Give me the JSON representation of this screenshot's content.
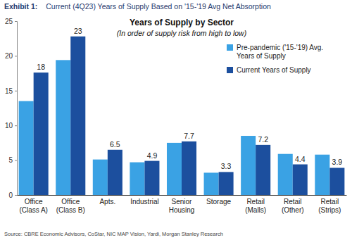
{
  "chart_data": {
    "type": "bar",
    "header": {
      "label": "Exhibit 1:",
      "title": "Current (4Q23) Years of Supply Based on '15-'19 Avg Net Absorption"
    },
    "title": "Years of Supply by Sector",
    "subtitle": "(In order of supply risk from high to low)",
    "source": "Source: CBRE Economic Advisors, CoStar, NIC MAP Vision, Yardi, Morgan Stanley Research",
    "categories": [
      "Office (Class A)",
      "Office (Class B)",
      "Apts.",
      "Industrial",
      "Senior Housing",
      "Storage",
      "Retail (Malls)",
      "Retail (Other)",
      "Retail (Strips)"
    ],
    "series": [
      {
        "name": "Pre-pandemic ('15-'19) Avg. Years of Supply",
        "color": "#3aa2e4",
        "values": [
          13.5,
          19.4,
          5.1,
          4.7,
          7.5,
          3.2,
          8.5,
          5.9,
          5.8
        ]
      },
      {
        "name": "Current Years of Supply",
        "color": "#1c4f9e",
        "values": [
          17.6,
          22.8,
          6.5,
          4.9,
          7.7,
          3.3,
          7.2,
          4.4,
          3.9
        ],
        "value_labels": [
          "18",
          "23",
          "6.5",
          "4.9",
          "7.7",
          "3.3",
          "7.2",
          "4.4",
          "3.9"
        ],
        "data_labels": true
      }
    ],
    "ylim": [
      0,
      25
    ],
    "yticks": [
      0,
      5,
      10,
      15,
      20,
      25
    ],
    "grid": false,
    "legend": "upper right"
  }
}
